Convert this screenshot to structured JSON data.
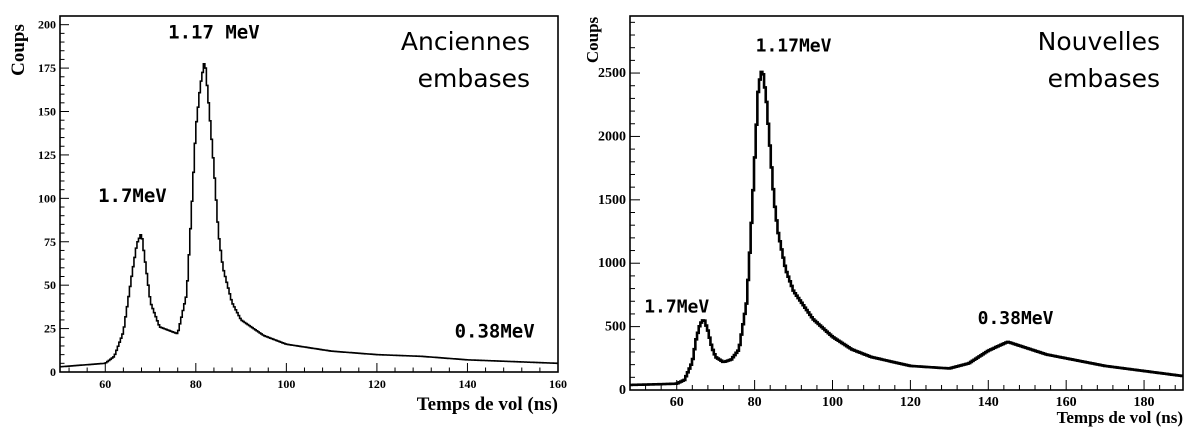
{
  "chart_data": [
    {
      "type": "line",
      "xlabel": "Temps de vol (ns)",
      "ylabel": "Coups",
      "xlim": [
        50,
        160
      ],
      "ylim": [
        0,
        205
      ],
      "xticks": [
        "60",
        "80",
        "100",
        "120",
        "140",
        "160"
      ],
      "yticks": [
        "0",
        "25",
        "50",
        "75",
        "100",
        "125",
        "150",
        "175",
        "200"
      ],
      "legend_text": [
        "Anciennes",
        "embases"
      ],
      "grid": false,
      "series": [
        {
          "style": "histogram",
          "x": [
            50,
            55,
            60,
            62,
            64,
            66,
            67,
            68,
            69,
            70,
            72,
            74,
            76,
            78,
            79,
            80,
            81,
            82,
            83,
            84,
            85,
            86,
            88,
            90,
            95,
            100,
            110,
            120,
            130,
            140,
            150,
            160
          ],
          "y": [
            3,
            4,
            5,
            9,
            23,
            58,
            74,
            80,
            60,
            40,
            26,
            24,
            22,
            45,
            90,
            140,
            165,
            180,
            150,
            118,
            80,
            60,
            40,
            30,
            21,
            16,
            12,
            10,
            9,
            7,
            6,
            5
          ]
        }
      ],
      "annotations": [
        {
          "text": "1.17 MeV",
          "x": 84,
          "y": 192
        },
        {
          "text": "1.7MeV",
          "x": 66,
          "y": 98
        },
        {
          "text": "0.38MeV",
          "x": 146,
          "y": 20
        }
      ]
    },
    {
      "type": "line",
      "xlabel": "Temps de vol (ns)",
      "ylabel": "Coups",
      "xlim": [
        48,
        190
      ],
      "ylim": [
        0,
        2950
      ],
      "xticks": [
        "60",
        "80",
        "100",
        "120",
        "140",
        "160",
        "180"
      ],
      "yticks": [
        "0",
        "500",
        "1000",
        "1500",
        "2000",
        "2500"
      ],
      "legend_text": [
        "Nouvelles",
        "embases"
      ],
      "grid": false,
      "series": [
        {
          "style": "histogram",
          "x": [
            48,
            55,
            60,
            62,
            64,
            65,
            66,
            67,
            68,
            69,
            70,
            72,
            74,
            76,
            78,
            79,
            80,
            81,
            82,
            83,
            84,
            85,
            86,
            88,
            90,
            95,
            100,
            105,
            110,
            120,
            130,
            135,
            140,
            145,
            150,
            155,
            160,
            170,
            180,
            190
          ],
          "y": [
            40,
            45,
            50,
            80,
            220,
            400,
            520,
            560,
            470,
            340,
            260,
            220,
            240,
            320,
            700,
            1200,
            1800,
            2400,
            2540,
            2300,
            1900,
            1500,
            1250,
            950,
            780,
            560,
            420,
            320,
            260,
            190,
            170,
            210,
            310,
            380,
            330,
            280,
            250,
            190,
            150,
            110
          ]
        }
      ],
      "annotations": [
        {
          "text": "1.17MeV",
          "x": 90,
          "y": 2670
        },
        {
          "text": "1.7MeV",
          "x": 60,
          "y": 610
        },
        {
          "text": "0.38MeV",
          "x": 147,
          "y": 520
        }
      ]
    }
  ]
}
